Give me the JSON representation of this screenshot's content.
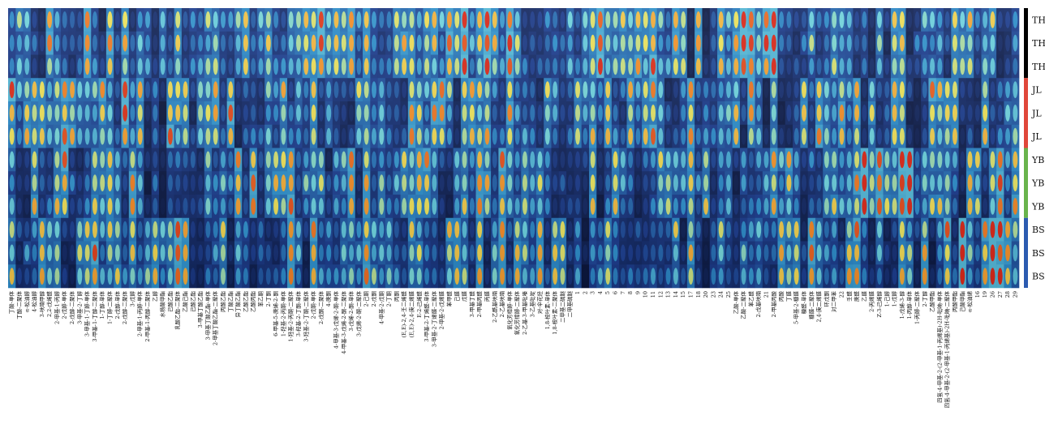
{
  "chart_data": {
    "type": "heatmap",
    "title": "",
    "xlabel": "",
    "ylabel": "",
    "rows": [
      "TH",
      "TH",
      "TH",
      "JL",
      "JL",
      "JL",
      "YB",
      "YB",
      "YB",
      "BS",
      "BS",
      "BS"
    ],
    "groups": [
      {
        "name": "TH",
        "color": "#000000"
      },
      {
        "name": "JL",
        "color": "#e0473a"
      },
      {
        "name": "YB",
        "color": "#69b34c"
      },
      {
        "name": "BS",
        "color": "#2c5bb0"
      }
    ],
    "columns": [
      "丁酸-单体",
      "丁酸-二聚体",
      "α-松油醇",
      "4-松油醇",
      "3-呋喃甲醇",
      "2,2-戊烯醛",
      "2-甲基-1-丙醇",
      "2-戊醇-单体",
      "2-戊醇-二聚体",
      "3-甲基-2-丁醇",
      "3-甲基-1-丁醇-单体",
      "3-甲基-1-丁醇-二聚体",
      "1-丁醇-单体",
      "1-丁醇-二聚体",
      "2-戊醇-单体",
      "2-戊醇-二聚体",
      "3-戊醇",
      "2-甲基-1-丙醇-单体",
      "2-甲基-1-丙醇-二聚体",
      "乙醇",
      "水杨酸甲酯",
      "己酸乙酯",
      "乳酸乙酯-二聚体",
      "乙酸己酯",
      "己酸乙酯",
      "3-甲基丁酸乙酯",
      "3-甲基丁酸乙酯-单体",
      "2-甲基丁酸乙酯-二聚体",
      "丙酸乙酯",
      "丁酸乙酯",
      "异丁酸乙酯",
      "乙酸乙酯",
      "乙酸丙酯",
      "苯乙酮",
      "2-丁酮",
      "6-甲基-5-庚烯-2-酮",
      "1-羟基-2-丙酮-单体",
      "1-羟基-2-丙酮-二聚体",
      "3-羟基-2-丁酮-单体",
      "3-羟基-2-丁酮-二聚体",
      "2-戊酮-单体",
      "2-戊酮-二聚体",
      "4-庚酮",
      "4-甲基-3-戊烯-2-酮-单体",
      "4-甲基-3-戊烯-2-酮-二聚体",
      "3-戊烯-2-酮-单体",
      "3-戊烯-2-酮-二聚体",
      "2-己酮",
      "2-戊酮",
      "4-甲基-2-戊酮",
      "2-丁酮",
      "丙酮",
      "(E,E)-2,4-壬二烯醛",
      "(E,E)-2,4-庚二烯醛",
      "E-2-己烯醛",
      "3-甲基-2-丁烯醛-单体",
      "3-甲基-2-丁烯醛-二聚体",
      "2-甲基-2-戊烯醛",
      "苯甲醛",
      "己醛",
      "戊醛",
      "3-甲基丁醛",
      "2-甲基丙醛",
      "丙醛",
      "2-乙酰基呋喃",
      "2-乙基呋喃",
      "氧化芳樟醇-单体",
      "氧化芳樟醇-二聚体",
      "2-乙基-3-甲基吡嗪",
      "3-乙基吡啶",
      "对-伞花烃",
      "1,8-桉叶素-单体",
      "1,8-桉叶素-二聚体",
      "二甲基二硫醚",
      "二甲基硫醚",
      "1",
      "2",
      "3",
      "4",
      "5",
      "6",
      "7",
      "8",
      "9",
      "10",
      "11",
      "12",
      "13",
      "14",
      "15",
      "17",
      "18",
      "20",
      "23",
      "24",
      "25",
      "乙酸-单体",
      "乙酸-二聚体",
      "苯乙醛",
      "2-戊基呋喃",
      "21",
      "2-甲基丙酸",
      "丙酸",
      "丁醛",
      "5-甲基-2-糠醛",
      "糠醛-单体",
      "糠醛-二聚体",
      "2,4-庚二烯醛",
      "环戊酮",
      "对二甲苯",
      "22",
      "壬醛",
      "庚醛",
      "乙醛",
      "2-丙烯醛",
      "Z-3-己烯醇",
      "1-己醇",
      "1-戊醇",
      "1-戊烯-3-醇",
      "1-丙醇-单体",
      "1-丙醇-二聚体",
      "2-丁醇",
      "乙酸甲酯",
      "四氢-4-甲基-2-(2-甲基-1-丙烯基)-2H-吡喃-单体",
      "四氢-4-甲基-2-(2-甲基-1-丙烯基)-2H-吡喃-二聚体",
      "丙酸甲酯",
      "己酸甲酯",
      "α-松油烯",
      "16",
      "19",
      "26",
      "27",
      "28",
      "29"
    ]
  }
}
